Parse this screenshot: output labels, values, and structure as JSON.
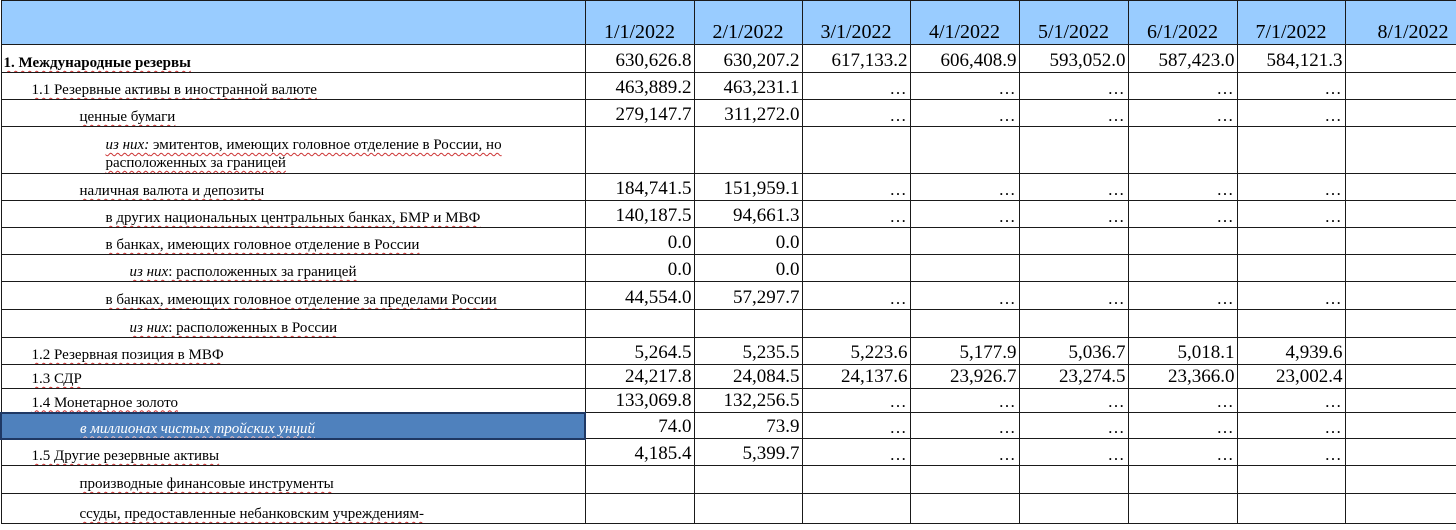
{
  "columns": [
    "1/1/2022",
    "2/1/2022",
    "3/1/2022",
    "4/1/2022",
    "5/1/2022",
    "6/1/2022",
    "7/1/2022",
    "8/1/2022"
  ],
  "rows": [
    {
      "label": "1. Международные резервы",
      "values": [
        "630,626.8",
        "630,207.2",
        "617,133.2",
        "606,408.9",
        "593,052.0",
        "587,423.0",
        "584,121.3",
        ""
      ]
    },
    {
      "label": "1.1 Резервные активы в иностранной валюте",
      "values": [
        "463,889.2",
        "463,231.1",
        "…",
        "…",
        "…",
        "…",
        "…",
        ""
      ]
    },
    {
      "label": "ценные бумаги",
      "values": [
        "279,147.7",
        "311,272.0",
        "…",
        "…",
        "…",
        "…",
        "…",
        ""
      ]
    },
    {
      "label_prefix": "из них:",
      "label": " эмитентов, имеющих головное отделение в России, но расположенных за границей",
      "values": [
        "",
        "",
        "",
        "",
        "",
        "",
        "",
        ""
      ]
    },
    {
      "label": "наличная валюта и депозиты",
      "values": [
        "184,741.5",
        "151,959.1",
        "…",
        "…",
        "…",
        "…",
        "…",
        ""
      ]
    },
    {
      "label": "в других национальных центральных банках, БМР и МВФ",
      "values": [
        "140,187.5",
        "94,661.3",
        "…",
        "…",
        "…",
        "…",
        "…",
        ""
      ]
    },
    {
      "label": "в банках, имеющих головное отделение в России",
      "values": [
        "0.0",
        "0.0",
        "",
        "",
        "",
        "",
        "",
        ""
      ]
    },
    {
      "label_prefix": "из них",
      "label": ": расположенных за границей",
      "values": [
        "0.0",
        "0.0",
        "",
        "",
        "",
        "",
        "",
        ""
      ]
    },
    {
      "label": "в банках, имеющих головное отделение за пределами России",
      "values": [
        "44,554.0",
        "57,297.7",
        "…",
        "…",
        "…",
        "…",
        "…",
        ""
      ]
    },
    {
      "label_prefix": "из них",
      "label": ": расположенных в России",
      "values": [
        "",
        "",
        "",
        "",
        "",
        "",
        "",
        ""
      ]
    },
    {
      "label": "1.2 Резервная позиция в МВФ",
      "values": [
        "5,264.5",
        "5,235.5",
        "5,223.6",
        "5,177.9",
        "5,036.7",
        "5,018.1",
        "4,939.6",
        ""
      ]
    },
    {
      "label": "1.3 СДР",
      "values": [
        "24,217.8",
        "24,084.5",
        "24,137.6",
        "23,926.7",
        "23,274.5",
        "23,366.0",
        "23,002.4",
        ""
      ]
    },
    {
      "label": "1.4 Монетарное золото",
      "values": [
        "133,069.8",
        "132,256.5",
        "…",
        "…",
        "…",
        "…",
        "…",
        ""
      ]
    },
    {
      "label": "в миллионах чистых тройских унций",
      "values": [
        "74.0",
        "73.9",
        "…",
        "…",
        "…",
        "…",
        "…",
        ""
      ]
    },
    {
      "label": "1.5 Другие резервные активы",
      "values": [
        "4,185.4",
        "5,399.7",
        "…",
        "…",
        "…",
        "…",
        "…",
        ""
      ]
    },
    {
      "label": "производные финансовые инструменты",
      "values": [
        "",
        "",
        "",
        "",
        "",
        "",
        "",
        ""
      ]
    },
    {
      "label": "ссуды, предоставленные небанковским учреждениям-",
      "values": [
        "",
        "",
        "",
        "",
        "",
        "",
        "",
        ""
      ]
    }
  ],
  "colors": {
    "header_bg": "#99ccff",
    "selected_bg": "#4f81bd",
    "spellcheck": "#cc3333"
  }
}
